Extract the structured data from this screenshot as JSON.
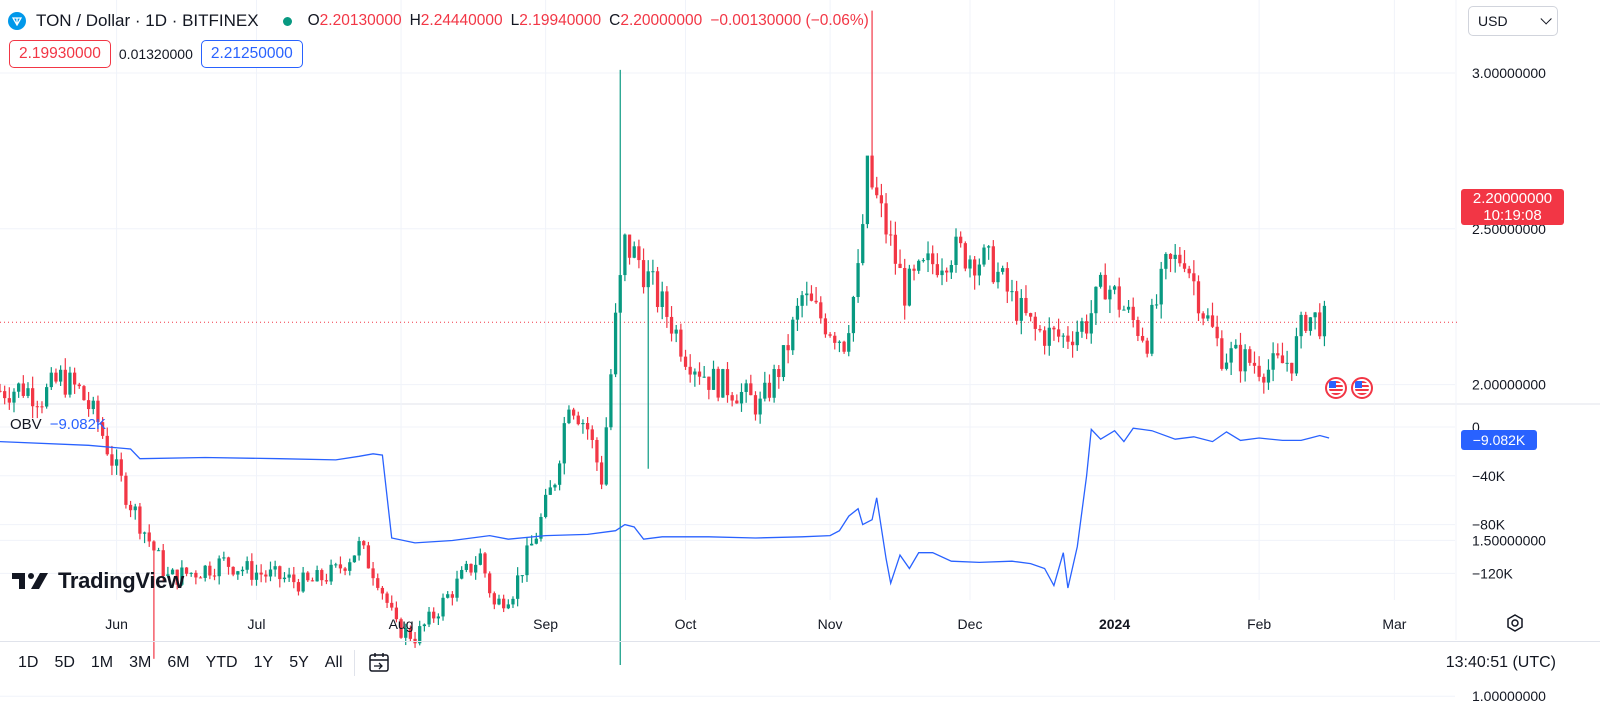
{
  "header": {
    "symbol_title": "TON / Dollar · 1D · BITFINEX",
    "ohlc": [
      {
        "key": "O",
        "value": "2.20130000"
      },
      {
        "key": "H",
        "value": "2.24440000"
      },
      {
        "key": "L",
        "value": "2.19940000"
      },
      {
        "key": "C",
        "value": "2.20000000"
      }
    ],
    "change": "−0.00130000 (−0.06%)",
    "sell_price": "2.19930000",
    "spread": "0.01320000",
    "buy_price": "2.21250000",
    "currency": "USD"
  },
  "price_tag": {
    "price": "2.20000000",
    "countdown": "10:19:08"
  },
  "obv": {
    "label": "OBV",
    "value": "−9.082K",
    "tag": "−9.082K"
  },
  "brand": "TradingView",
  "toolbar": {
    "ranges": [
      "1D",
      "5D",
      "1M",
      "3M",
      "6M",
      "YTD",
      "1Y",
      "5Y",
      "All"
    ],
    "clock": "13:40:51 (UTC)"
  },
  "colors": {
    "up": "#089981",
    "down": "#f23645",
    "obv_line": "#2962ff",
    "grid": "#f0f3fa"
  },
  "icons": {
    "logo": "ton-logo-icon",
    "calendar": "calendar-range-icon",
    "settings": "settings-icon",
    "events": "us-flag-event-icon"
  },
  "chart_data": [
    {
      "type": "candlestick",
      "title": "TON / Dollar · 1D · BITFINEX",
      "y_ticks": [
        "3.00000000",
        "2.50000000",
        "2.00000000",
        "1.50000000",
        "1.00000000"
      ],
      "ylim": [
        0.97,
        3.22
      ],
      "x_ticks": [
        {
          "date": "2023-06-01",
          "label": "Jun"
        },
        {
          "date": "2023-07-01",
          "label": "Jul"
        },
        {
          "date": "2023-08-01",
          "label": "Aug"
        },
        {
          "date": "2023-09-01",
          "label": "Sep"
        },
        {
          "date": "2023-10-01",
          "label": "Oct"
        },
        {
          "date": "2023-11-01",
          "label": "Nov"
        },
        {
          "date": "2023-12-01",
          "label": "Dec"
        },
        {
          "date": "2024-01-01",
          "label": "2024",
          "bold": true
        },
        {
          "date": "2024-02-01",
          "label": "Feb"
        },
        {
          "date": "2024-03-01",
          "label": "Mar"
        }
      ],
      "xlim": [
        "2023-05-07",
        "2024-03-14"
      ],
      "last_price": 2.2,
      "anchors": [
        [
          "2023-05-07",
          1.98
        ],
        [
          "2023-05-12",
          1.99
        ],
        [
          "2023-05-16",
          1.96
        ],
        [
          "2023-05-20",
          2.02
        ],
        [
          "2023-05-24",
          1.98
        ],
        [
          "2023-05-28",
          1.88
        ],
        [
          "2023-06-01",
          1.72
        ],
        [
          "2023-06-04",
          1.62
        ],
        [
          "2023-06-08",
          1.5
        ],
        [
          "2023-06-12",
          1.38
        ],
        [
          "2023-06-18",
          1.4
        ],
        [
          "2023-06-24",
          1.43
        ],
        [
          "2023-06-30",
          1.4
        ],
        [
          "2023-07-06",
          1.38
        ],
        [
          "2023-07-12",
          1.36
        ],
        [
          "2023-07-18",
          1.4
        ],
        [
          "2023-07-23",
          1.48
        ],
        [
          "2023-07-27",
          1.38
        ],
        [
          "2023-07-31",
          1.22
        ],
        [
          "2023-08-04",
          1.19
        ],
        [
          "2023-08-08",
          1.26
        ],
        [
          "2023-08-14",
          1.38
        ],
        [
          "2023-08-18",
          1.45
        ],
        [
          "2023-08-21",
          1.29
        ],
        [
          "2023-08-25",
          1.34
        ],
        [
          "2023-08-30",
          1.52
        ],
        [
          "2023-09-03",
          1.7
        ],
        [
          "2023-09-06",
          1.96
        ],
        [
          "2023-09-10",
          1.86
        ],
        [
          "2023-09-13",
          1.7
        ],
        [
          "2023-09-16",
          2.2
        ],
        [
          "2023-09-18",
          2.45
        ],
        [
          "2023-09-21",
          2.4
        ],
        [
          "2023-09-25",
          2.28
        ],
        [
          "2023-09-28",
          2.2
        ],
        [
          "2023-10-01",
          2.1
        ],
        [
          "2023-10-06",
          2.02
        ],
        [
          "2023-10-12",
          1.98
        ],
        [
          "2023-10-17",
          1.93
        ],
        [
          "2023-10-22",
          2.08
        ],
        [
          "2023-10-26",
          2.28
        ],
        [
          "2023-10-31",
          2.2
        ],
        [
          "2023-11-04",
          2.14
        ],
        [
          "2023-11-07",
          2.35
        ],
        [
          "2023-11-09",
          2.68
        ],
        [
          "2023-11-13",
          2.5
        ],
        [
          "2023-11-17",
          2.3
        ],
        [
          "2023-11-22",
          2.38
        ],
        [
          "2023-11-27",
          2.43
        ],
        [
          "2023-12-02",
          2.41
        ],
        [
          "2023-12-06",
          2.38
        ],
        [
          "2023-12-10",
          2.27
        ],
        [
          "2023-12-15",
          2.17
        ],
        [
          "2023-12-21",
          2.15
        ],
        [
          "2023-12-26",
          2.2
        ],
        [
          "2023-12-30",
          2.33
        ],
        [
          "2024-01-04",
          2.22
        ],
        [
          "2024-01-08",
          2.15
        ],
        [
          "2024-01-12",
          2.37
        ],
        [
          "2024-01-16",
          2.42
        ],
        [
          "2024-01-20",
          2.24
        ],
        [
          "2024-01-24",
          2.1
        ],
        [
          "2024-01-29",
          2.08
        ],
        [
          "2024-02-03",
          2.05
        ],
        [
          "2024-02-08",
          2.08
        ],
        [
          "2024-02-11",
          2.22
        ],
        [
          "2024-02-15",
          2.2
        ]
      ]
    },
    {
      "type": "line",
      "series": [
        {
          "name": "OBV",
          "color": "#2962ff"
        }
      ],
      "y_ticks": [
        "0",
        "−40K",
        "−80K",
        "−120K"
      ],
      "y_tick_values": [
        0,
        -40,
        -80,
        -120
      ],
      "ylim": [
        -139,
        4
      ],
      "units": "K",
      "points": [
        [
          "2023-05-07",
          -12
        ],
        [
          "2023-05-26",
          -15
        ],
        [
          "2023-06-04",
          -18
        ],
        [
          "2023-06-06",
          -26
        ],
        [
          "2023-06-20",
          -25
        ],
        [
          "2023-07-06",
          -26
        ],
        [
          "2023-07-18",
          -27
        ],
        [
          "2023-07-23",
          -24
        ],
        [
          "2023-07-26",
          -22
        ],
        [
          "2023-07-28",
          -23
        ],
        [
          "2023-07-30",
          -91
        ],
        [
          "2023-08-04",
          -95
        ],
        [
          "2023-08-12",
          -93
        ],
        [
          "2023-08-20",
          -89
        ],
        [
          "2023-08-24",
          -92
        ],
        [
          "2023-09-01",
          -89
        ],
        [
          "2023-09-10",
          -88
        ],
        [
          "2023-09-16",
          -85
        ],
        [
          "2023-09-18",
          -80
        ],
        [
          "2023-09-20",
          -82
        ],
        [
          "2023-09-22",
          -92
        ],
        [
          "2023-09-26",
          -90
        ],
        [
          "2023-10-06",
          -90
        ],
        [
          "2023-10-16",
          -91
        ],
        [
          "2023-10-26",
          -90
        ],
        [
          "2023-11-01",
          -89
        ],
        [
          "2023-11-03",
          -85
        ],
        [
          "2023-11-05",
          -73
        ],
        [
          "2023-11-07",
          -67
        ],
        [
          "2023-11-08",
          -80
        ],
        [
          "2023-11-10",
          -76
        ],
        [
          "2023-11-11",
          -58
        ],
        [
          "2023-11-13",
          -108
        ],
        [
          "2023-11-14",
          -128
        ],
        [
          "2023-11-16",
          -105
        ],
        [
          "2023-11-18",
          -116
        ],
        [
          "2023-11-20",
          -103
        ],
        [
          "2023-11-23",
          -103
        ],
        [
          "2023-11-27",
          -110
        ],
        [
          "2023-12-03",
          -111
        ],
        [
          "2023-12-10",
          -110
        ],
        [
          "2023-12-14",
          -112
        ],
        [
          "2023-12-17",
          -116
        ],
        [
          "2023-12-19",
          -130
        ],
        [
          "2023-12-21",
          -103
        ],
        [
          "2023-12-22",
          -132
        ],
        [
          "2023-12-24",
          -98
        ],
        [
          "2023-12-26",
          -40
        ],
        [
          "2023-12-27",
          -2
        ],
        [
          "2023-12-29",
          -10
        ],
        [
          "2024-01-01",
          -3
        ],
        [
          "2024-01-03",
          -12
        ],
        [
          "2024-01-05",
          -1
        ],
        [
          "2024-01-09",
          -3
        ],
        [
          "2024-01-14",
          -10
        ],
        [
          "2024-01-18",
          -8
        ],
        [
          "2024-01-22",
          -12
        ],
        [
          "2024-01-25",
          -4
        ],
        [
          "2024-01-28",
          -11
        ],
        [
          "2024-02-01",
          -9
        ],
        [
          "2024-02-06",
          -11
        ],
        [
          "2024-02-10",
          -11
        ],
        [
          "2024-02-12",
          -9
        ],
        [
          "2024-02-14",
          -7
        ],
        [
          "2024-02-16",
          -9
        ]
      ]
    }
  ]
}
